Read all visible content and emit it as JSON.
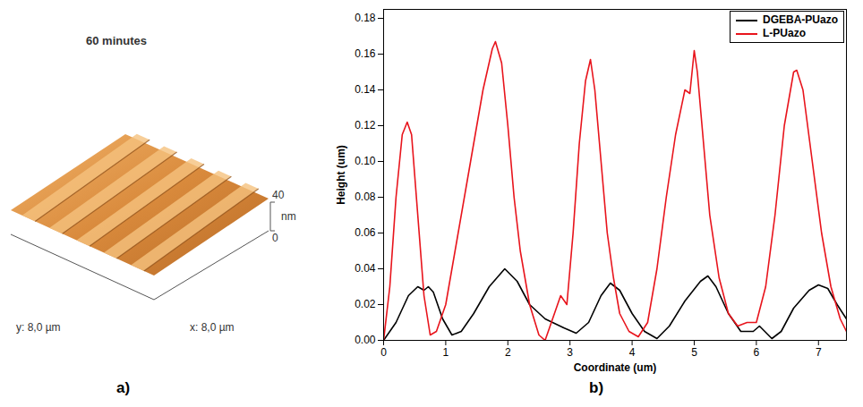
{
  "chart_data": [
    {
      "type": "surface",
      "panel": "a)",
      "title": "60 minutes",
      "x_label": "x: 8,0 µm",
      "y_label": "y: 8,0 µm",
      "z_label": "nm",
      "zticks": [
        0,
        40
      ]
    },
    {
      "type": "line",
      "panel": "b)",
      "x_label": "Coordinate (um)",
      "y_label": "Height (um)",
      "xlim": [
        0,
        7.45
      ],
      "ylim": [
        0,
        0.185
      ],
      "xticks": [
        0,
        1,
        2,
        3,
        4,
        5,
        6,
        7
      ],
      "yticks": [
        {
          "value": 0,
          "label": "0.00"
        },
        {
          "value": 0.02,
          "label": "0.02"
        },
        {
          "value": 0.04,
          "label": "0.04"
        },
        {
          "value": 0.06,
          "label": "0.06"
        },
        {
          "value": 0.08,
          "label": "0.08"
        },
        {
          "value": 0.1,
          "label": "0.10"
        },
        {
          "value": 0.12,
          "label": "0.12"
        },
        {
          "value": 0.14,
          "label": "0.14"
        },
        {
          "value": 0.16,
          "label": "0.16"
        },
        {
          "value": 0.18,
          "label": "0.18"
        }
      ],
      "legend": "top-right",
      "series": [
        {
          "name": "DGEBA-PUazo",
          "color": "#000000",
          "line_style": "solid",
          "x": [
            0,
            0.2,
            0.4,
            0.55,
            0.65,
            0.72,
            0.8,
            0.95,
            1.1,
            1.25,
            1.45,
            1.7,
            1.95,
            2.15,
            2.35,
            2.6,
            2.9,
            3.1,
            3.3,
            3.5,
            3.65,
            3.8,
            4.0,
            4.2,
            4.4,
            4.6,
            4.85,
            5.1,
            5.22,
            5.35,
            5.55,
            5.75,
            5.95,
            6.05,
            6.25,
            6.4,
            6.6,
            6.85,
            7.0,
            7.15,
            7.3,
            7.45
          ],
          "values": [
            0,
            0.01,
            0.025,
            0.03,
            0.028,
            0.03,
            0.027,
            0.012,
            0.003,
            0.005,
            0.015,
            0.03,
            0.04,
            0.033,
            0.02,
            0.012,
            0.007,
            0.004,
            0.01,
            0.025,
            0.032,
            0.028,
            0.015,
            0.005,
            0.001,
            0.008,
            0.022,
            0.033,
            0.036,
            0.03,
            0.015,
            0.005,
            0.005,
            0.008,
            0.001,
            0.005,
            0.018,
            0.028,
            0.031,
            0.029,
            0.02,
            0.012
          ]
        },
        {
          "name": "L-PUazo",
          "color": "#e8141c",
          "line_style": "solid",
          "x": [
            0,
            0.1,
            0.2,
            0.3,
            0.38,
            0.45,
            0.55,
            0.65,
            0.75,
            0.85,
            1.0,
            1.2,
            1.4,
            1.6,
            1.75,
            1.8,
            1.9,
            2.0,
            2.1,
            2.2,
            2.35,
            2.5,
            2.6,
            2.75,
            2.85,
            2.95,
            3.05,
            3.15,
            3.25,
            3.33,
            3.4,
            3.5,
            3.6,
            3.7,
            3.8,
            3.95,
            4.1,
            4.25,
            4.4,
            4.55,
            4.7,
            4.85,
            4.93,
            5.0,
            5.05,
            5.15,
            5.25,
            5.4,
            5.55,
            5.7,
            5.85,
            6.0,
            6.15,
            6.3,
            6.45,
            6.6,
            6.65,
            6.75,
            6.9,
            7.05,
            7.2,
            7.35,
            7.45
          ],
          "values": [
            0,
            0.03,
            0.08,
            0.115,
            0.122,
            0.115,
            0.07,
            0.025,
            0.003,
            0.005,
            0.02,
            0.06,
            0.1,
            0.14,
            0.163,
            0.167,
            0.155,
            0.12,
            0.08,
            0.05,
            0.02,
            0.003,
            0,
            0.015,
            0.025,
            0.02,
            0.06,
            0.11,
            0.145,
            0.157,
            0.14,
            0.1,
            0.06,
            0.035,
            0.015,
            0.005,
            0.002,
            0.01,
            0.04,
            0.08,
            0.115,
            0.14,
            0.138,
            0.162,
            0.15,
            0.11,
            0.07,
            0.035,
            0.015,
            0.008,
            0.01,
            0.01,
            0.03,
            0.07,
            0.12,
            0.15,
            0.151,
            0.14,
            0.1,
            0.06,
            0.03,
            0.012,
            0.005
          ]
        }
      ]
    }
  ]
}
